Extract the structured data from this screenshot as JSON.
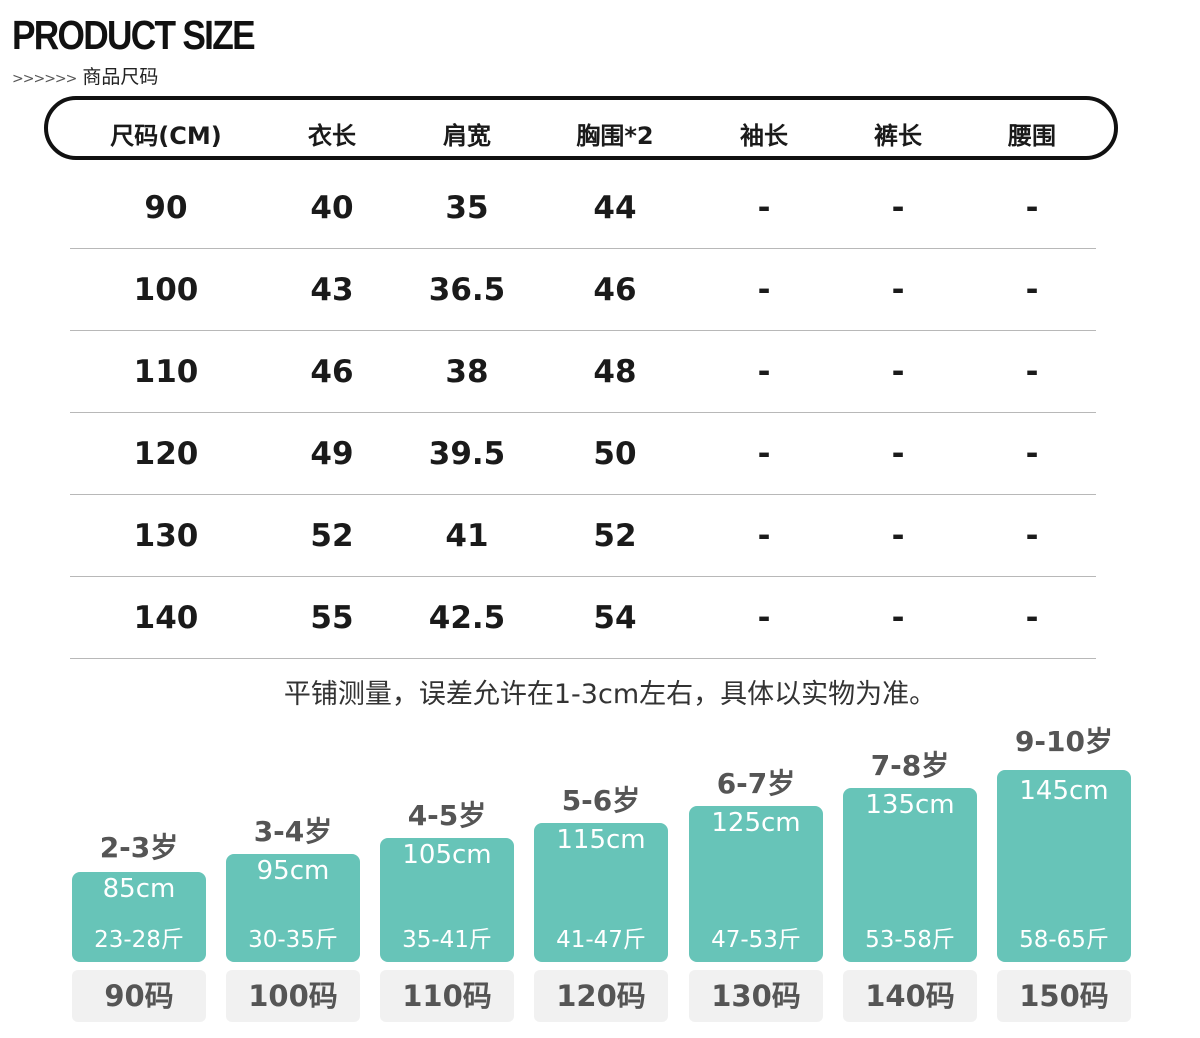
{
  "header": {
    "title": "PRODUCT SIZE",
    "arrows": ">>>>>>",
    "subtitle": "商品尺码"
  },
  "table": {
    "columns": [
      "尺码(CM)",
      "衣长",
      "肩宽",
      "胸围*2",
      "袖长",
      "裤长",
      "腰围"
    ],
    "rows": [
      [
        "90",
        "40",
        "35",
        "44",
        "-",
        "-",
        "-"
      ],
      [
        "100",
        "43",
        "36.5",
        "46",
        "-",
        "-",
        "-"
      ],
      [
        "110",
        "46",
        "38",
        "48",
        "-",
        "-",
        "-"
      ],
      [
        "120",
        "49",
        "39.5",
        "50",
        "-",
        "-",
        "-"
      ],
      [
        "130",
        "52",
        "41",
        "52",
        "-",
        "-",
        "-"
      ],
      [
        "140",
        "55",
        "42.5",
        "54",
        "-",
        "-",
        "-"
      ]
    ]
  },
  "note": "平铺测量，误差允许在1-3cm左右，具体以实物为准。",
  "size_guide": [
    {
      "age": "2-3岁",
      "height": "85cm",
      "weight": "23-28斤",
      "code": "90码"
    },
    {
      "age": "3-4岁",
      "height": "95cm",
      "weight": "30-35斤",
      "code": "100码"
    },
    {
      "age": "4-5岁",
      "height": "105cm",
      "weight": "35-41斤",
      "code": "110码"
    },
    {
      "age": "5-6岁",
      "height": "115cm",
      "weight": "41-47斤",
      "code": "120码"
    },
    {
      "age": "6-7岁",
      "height": "125cm",
      "weight": "47-53斤",
      "code": "130码"
    },
    {
      "age": "7-8岁",
      "height": "135cm",
      "weight": "53-58斤",
      "code": "140码"
    },
    {
      "age": "9-10岁",
      "height": "145cm",
      "weight": "58-65斤",
      "code": "150码"
    }
  ],
  "colors": {
    "tile": "#67c4b8",
    "code_bg": "#f1f1f1",
    "text": "#1a1a1a"
  }
}
